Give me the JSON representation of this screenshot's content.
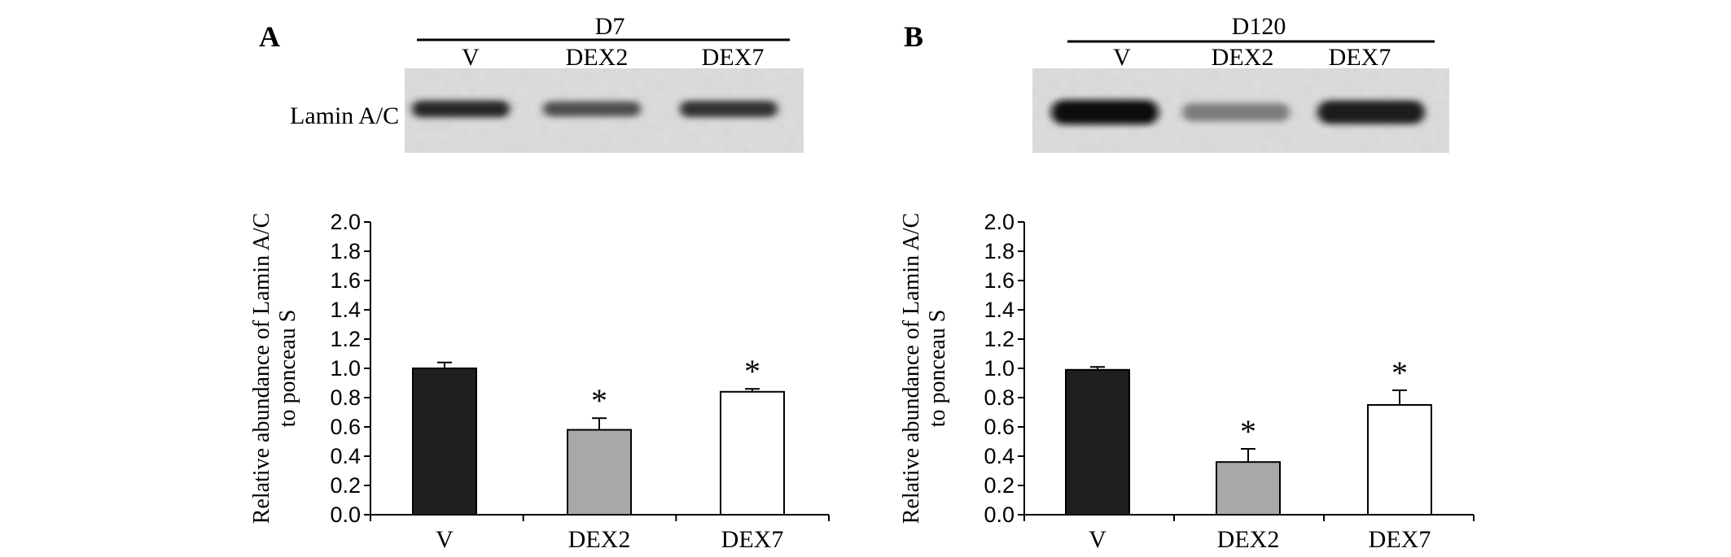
{
  "colors": {
    "bar_V": "#1f1f1f",
    "bar_DEX2": "#a8a8a8",
    "bar_DEX7": "#ffffff",
    "stroke": "#000000"
  },
  "panels": [
    {
      "letter": "A",
      "timepoint": "D7",
      "blot_lanes": [
        "V",
        "DEX2",
        "DEX7"
      ],
      "blot_label": "Lamin A/C",
      "blot_band_intensity": [
        0.85,
        0.65,
        0.8
      ]
    },
    {
      "letter": "B",
      "timepoint": "D120",
      "blot_lanes": [
        "V",
        "DEX2",
        "DEX7"
      ],
      "blot_label": "",
      "blot_band_intensity": [
        1.0,
        0.4,
        0.9
      ]
    }
  ],
  "chart_data": [
    {
      "type": "bar",
      "title": "",
      "categories": [
        "V",
        "DEX2",
        "DEX7"
      ],
      "values": [
        1.0,
        0.58,
        0.84
      ],
      "errors": [
        0.04,
        0.08,
        0.02
      ],
      "significance": [
        "",
        "*",
        "*"
      ],
      "ylabel_line1": "Relative abundance of Lamin A/C",
      "ylabel_line2": "to ponceau S",
      "xlabel": "",
      "ylim": [
        0,
        2.0
      ],
      "yticks": [
        "0.0",
        "0.2",
        "0.4",
        "0.6",
        "0.8",
        "1.0",
        "1.2",
        "1.4",
        "1.6",
        "1.8",
        "2.0"
      ],
      "grid": false
    },
    {
      "type": "bar",
      "title": "",
      "categories": [
        "V",
        "DEX2",
        "DEX7"
      ],
      "values": [
        0.99,
        0.36,
        0.75
      ],
      "errors": [
        0.02,
        0.09,
        0.1
      ],
      "significance": [
        "",
        "*",
        "*"
      ],
      "ylabel_line1": "Relative abundance of Lamin A/C",
      "ylabel_line2": "to ponceau S",
      "xlabel": "",
      "ylim": [
        0,
        2.0
      ],
      "yticks": [
        "0.0",
        "0.2",
        "0.4",
        "0.6",
        "0.8",
        "1.0",
        "1.2",
        "1.4",
        "1.6",
        "1.8",
        "2.0"
      ],
      "grid": false
    }
  ]
}
